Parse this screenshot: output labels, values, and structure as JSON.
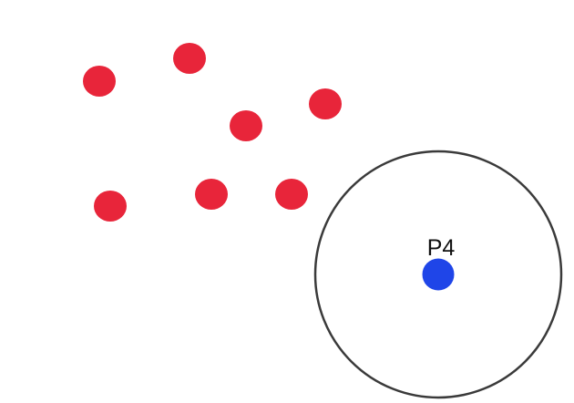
{
  "colors": {
    "background": "#ffffff",
    "red_point": "#e8253a",
    "blue_point": "#1f45e8",
    "circle_stroke": "#3a3a3a"
  },
  "red_points": [
    {
      "name": "red-point-1"
    },
    {
      "name": "red-point-2"
    },
    {
      "name": "red-point-3"
    },
    {
      "name": "red-point-4"
    },
    {
      "name": "red-point-5"
    },
    {
      "name": "red-point-6"
    },
    {
      "name": "red-point-7"
    }
  ],
  "query_point": {
    "label": "P4"
  }
}
